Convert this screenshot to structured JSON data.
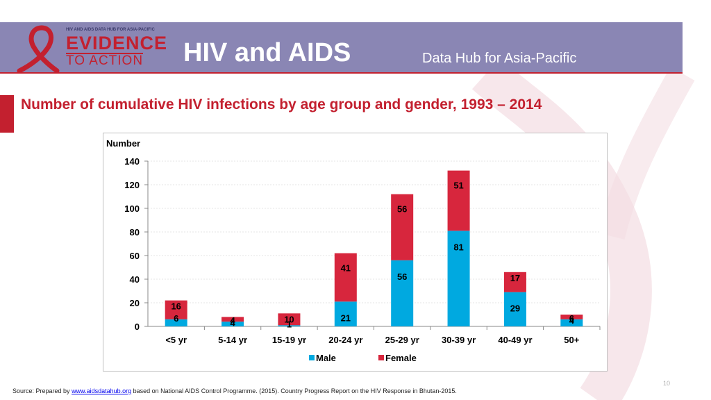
{
  "header": {
    "logo_small_text": "HIV AND AIDS DATA HUB FOR ASIA-PACIFIC",
    "logo_line1": "EVIDENCE",
    "logo_line2": "TO ACTION",
    "title": "HIV and AIDS",
    "subtitle": "Data Hub for Asia-Pacific"
  },
  "page_title": "Number of cumulative HIV infections by age group and gender, 1993 – 2014",
  "source": {
    "prefix": "Source: Prepared by ",
    "link": "www.aidsdatahub.org",
    "suffix": " based on National AIDS Control Programme. (2015). Country Progress Report on the HIV Response in Bhutan-2015."
  },
  "slide_number": "10",
  "colors": {
    "male": "#00a9e0",
    "female": "#d7263d",
    "accent": "#c3202f",
    "header": "#8a86b4"
  },
  "chart_data": {
    "type": "bar",
    "stacked": true,
    "ylabel": "Number",
    "ylim": [
      0,
      140
    ],
    "yticks": [
      0,
      20,
      40,
      60,
      80,
      100,
      120,
      140
    ],
    "grid": true,
    "legend_position": "bottom",
    "categories": [
      "<5 yr",
      "5-14 yr",
      "15-19 yr",
      "20-24 yr",
      "25-29 yr",
      "30-39 yr",
      "40-49 yr",
      "50+"
    ],
    "series": [
      {
        "name": "Male",
        "color": "#00a9e0",
        "values": [
          6,
          4,
          1,
          21,
          56,
          81,
          29,
          6
        ]
      },
      {
        "name": "Female",
        "color": "#d7263d",
        "values": [
          16,
          4,
          10,
          41,
          56,
          51,
          17,
          4
        ]
      }
    ]
  }
}
